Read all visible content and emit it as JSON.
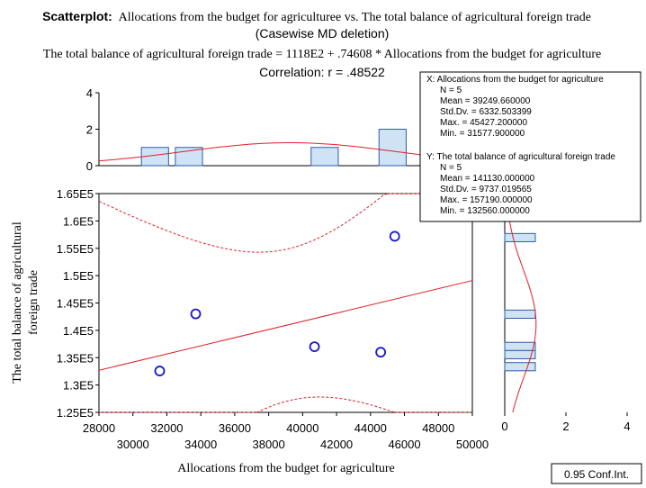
{
  "chart_data": {
    "type": "scatter",
    "title_bold": "Scatterplot:",
    "title_rest": "Allocations from the budget for agriculturee vs. The total balance of agricultural foreign trade",
    "subtitle": "(Casewise MD deletion)",
    "equation": "The total balance of agricultural foreign trade = 1118E2 + .74608 * Allocations from the budget for agriculture",
    "correlation": "Correlation: r = .48522",
    "xlabel": "Allocations from the budget for agriculture",
    "ylabel_line1": "The total balance of agricultural",
    "ylabel_line2": "foreign trade",
    "xlim": [
      28000,
      50000
    ],
    "ylim": [
      125000,
      165000
    ],
    "x_ticks_upper": [
      "28000",
      "32000",
      "36000",
      "40000",
      "44000",
      "48000"
    ],
    "x_ticks_lower": [
      "30000",
      "34000",
      "38000",
      "42000",
      "46000",
      "50000"
    ],
    "x_tick_values_upper": [
      28000,
      32000,
      36000,
      40000,
      44000,
      48000
    ],
    "x_tick_values_lower": [
      30000,
      34000,
      38000,
      42000,
      46000,
      50000
    ],
    "y_ticks": [
      "1.25E5",
      "1.3E5",
      "1.35E5",
      "1.4E5",
      "1.45E5",
      "1.5E5",
      "1.55E5",
      "1.6E5",
      "1.65E5"
    ],
    "y_tick_values": [
      125000,
      130000,
      135000,
      140000,
      145000,
      150000,
      155000,
      160000,
      165000
    ],
    "points": [
      {
        "x": 31578,
        "y": 132560
      },
      {
        "x": 33700,
        "y": 143000
      },
      {
        "x": 40700,
        "y": 137000
      },
      {
        "x": 44600,
        "y": 136000
      },
      {
        "x": 45427,
        "y": 157190
      }
    ],
    "regression": {
      "intercept": 111800,
      "slope": 0.74608
    },
    "top_hist": {
      "ylim": [
        0,
        4
      ],
      "y_ticks": [
        "0",
        "2",
        "4"
      ],
      "y_tick_values": [
        0,
        2,
        4
      ],
      "bins": [
        {
          "from": 30500,
          "to": 32100,
          "count": 1
        },
        {
          "from": 32500,
          "to": 34100,
          "count": 1
        },
        {
          "from": 40500,
          "to": 42100,
          "count": 1
        },
        {
          "from": 44500,
          "to": 46100,
          "count": 2
        }
      ]
    },
    "right_hist": {
      "xlim": [
        0,
        4
      ],
      "x_ticks": [
        "0",
        "2",
        "4"
      ],
      "x_tick_values": [
        0,
        2,
        4
      ],
      "bins": [
        {
          "from": 156200,
          "to": 157700,
          "count": 1
        },
        {
          "from": 142200,
          "to": 143700,
          "count": 1
        },
        {
          "from": 136300,
          "to": 137800,
          "count": 1
        },
        {
          "from": 134800,
          "to": 136300,
          "count": 1
        },
        {
          "from": 132600,
          "to": 134100,
          "count": 1
        }
      ]
    },
    "stats_x": {
      "header": "X:  Allocations from the budget for agriculture",
      "lines": [
        "N = 5",
        "Mean = 39249.660000",
        "Std.Dv. = 6332.503399",
        "Max. = 45427.200000",
        "Min. = 31577.900000"
      ]
    },
    "stats_y": {
      "header": "Y:  The total balance of agricultural foreign trade",
      "lines": [
        "N = 5",
        "Mean = 141130.000000",
        "Std.Dv. = 9737.019565",
        "Max. = 157190.000000",
        "Min. = 132560.000000"
      ]
    },
    "legend_label": "0.95 Conf.Int.",
    "colors": {
      "bar": "#cfe3f5",
      "bar_stroke": "#2b5fa8",
      "point": "#1818c8",
      "line": "#e0202a"
    }
  }
}
